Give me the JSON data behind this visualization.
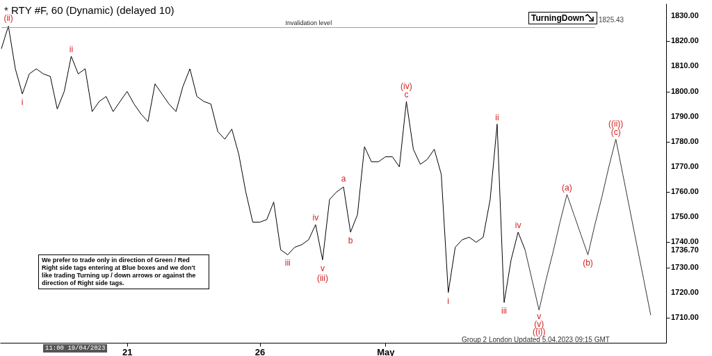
{
  "chart_data": {
    "type": "line",
    "title": "* RTY #F, 60 (Dynamic) (delayed 10)",
    "categories": [
      null,
      null,
      null,
      null,
      null,
      null,
      null,
      null,
      null,
      null,
      null,
      null,
      null,
      null,
      null,
      null,
      null,
      null,
      "21",
      null,
      null,
      null,
      null,
      null,
      null,
      null,
      null,
      null,
      null,
      null,
      null,
      null,
      null,
      null,
      null,
      null,
      null,
      "26",
      null,
      null,
      null,
      null,
      null,
      null,
      null,
      null,
      null,
      null,
      null,
      null,
      null,
      null,
      null,
      null,
      null,
      "May",
      null,
      null,
      null,
      null,
      null,
      null,
      null,
      null,
      null,
      null,
      null,
      null,
      null,
      null,
      null,
      null,
      null,
      null,
      null,
      null,
      null,
      null,
      null,
      null,
      null,
      null,
      null,
      null,
      null,
      null,
      null,
      null,
      null,
      null,
      null,
      null,
      null,
      null,
      null,
      null
    ],
    "ylim": [
      1700,
      1835
    ],
    "yticks": [
      {
        "value": 1710,
        "label": "1710.00"
      },
      {
        "value": 1720,
        "label": "1720.00"
      },
      {
        "value": 1730,
        "label": "1730.00"
      },
      {
        "value": 1736.7,
        "label": "1736.70"
      },
      {
        "value": 1740,
        "label": "1740.00"
      },
      {
        "value": 1750,
        "label": "1750.00"
      },
      {
        "value": 1760,
        "label": "1760.00"
      },
      {
        "value": 1770,
        "label": "1770.00"
      },
      {
        "value": 1780,
        "label": "1780.00"
      },
      {
        "value": 1790,
        "label": "1790.00"
      },
      {
        "value": 1800,
        "label": "1800.00"
      },
      {
        "value": 1810,
        "label": "1810.00"
      },
      {
        "value": 1820,
        "label": "1820.00"
      },
      {
        "value": 1830,
        "label": "1830.00"
      }
    ],
    "grid": false,
    "marker": "none",
    "line_style": "solid",
    "series": [
      {
        "color": "#000000",
        "values": [
          1817,
          1826,
          1809,
          1799,
          1807,
          1809,
          1807,
          1806,
          1793,
          1800,
          1814,
          1807,
          1809,
          1792,
          1796,
          1798,
          1792,
          1796,
          1800,
          1795,
          1791,
          1788,
          1803,
          1799,
          1795,
          1792,
          1802,
          1809,
          1798,
          1796,
          1795,
          1784,
          1781,
          1785,
          1775,
          1760,
          1748,
          1748,
          1749,
          1756,
          1737,
          1735,
          1738,
          1739,
          1741,
          1747,
          1733,
          1757,
          1760,
          1762,
          1744,
          1751,
          1778,
          1772,
          1772,
          1774,
          1774,
          1770,
          1796,
          1777,
          1771,
          1773,
          1777,
          1767,
          1720,
          1738,
          1741,
          1742,
          1740,
          1742,
          1757,
          1787,
          1716,
          1733,
          1744,
          1737,
          null,
          null,
          null,
          null,
          null,
          null,
          null,
          null,
          null,
          null,
          null,
          null,
          null,
          null,
          null,
          null,
          null,
          null,
          null,
          null
        ]
      },
      {
        "color": "#333333",
        "values": [
          null,
          null,
          null,
          null,
          null,
          null,
          null,
          null,
          null,
          null,
          null,
          null,
          null,
          null,
          null,
          null,
          null,
          null,
          null,
          null,
          null,
          null,
          null,
          null,
          null,
          null,
          null,
          null,
          null,
          null,
          null,
          null,
          null,
          null,
          null,
          null,
          null,
          null,
          null,
          null,
          null,
          null,
          null,
          null,
          null,
          null,
          null,
          null,
          null,
          null,
          null,
          null,
          null,
          null,
          null,
          null,
          null,
          null,
          null,
          null,
          null,
          null,
          null,
          null,
          null,
          null,
          null,
          null,
          null,
          null,
          null,
          null,
          null,
          null,
          null,
          1737,
          1725,
          1713,
          1725,
          1736,
          1748,
          1759,
          1751,
          1743,
          1735,
          1747,
          1758,
          1770,
          1781,
          1767,
          1753,
          1739,
          1725,
          1711,
          null,
          null
        ]
      }
    ],
    "ref_lines": [
      {
        "axis": "y",
        "value": 1825.43,
        "label": "Invalidation level",
        "color": "#e8788a"
      }
    ],
    "annotations": [
      {
        "text": "(ii)",
        "y": 1826
      },
      {
        "text": "i",
        "y": 1799
      },
      {
        "text": "ii",
        "y": 1814
      },
      {
        "text": "iii",
        "y": 1735
      },
      {
        "text": "iv",
        "y": 1747
      },
      {
        "text": "v",
        "y": 1733
      },
      {
        "text": "(iii)",
        "y": 1733
      },
      {
        "text": "a",
        "y": 1762
      },
      {
        "text": "b",
        "y": 1744
      },
      {
        "text": "(iv)",
        "y": 1796
      },
      {
        "text": "c",
        "y": 1796
      },
      {
        "text": "i",
        "y": 1720
      },
      {
        "text": "ii",
        "y": 1787
      },
      {
        "text": "iii",
        "y": 1716
      },
      {
        "text": "iv",
        "y": 1744
      },
      {
        "text": "v",
        "y": 1713
      },
      {
        "text": "(v)",
        "y": 1713
      },
      {
        "text": "((i))",
        "y": 1713
      },
      {
        "text": "(a)",
        "y": 1759
      },
      {
        "text": "(b)",
        "y": 1735
      },
      {
        "text": "((ii))",
        "y": 1781
      },
      {
        "text": "(c)",
        "y": 1781
      },
      "1825.43",
      "We prefer to trade only in direction of Green / Red Right side tags entering at Blue boxes and we don't like trading Turning up / down arrows or against the direction of Right side tags.",
      "TurningDown",
      "11:00 19/04/2023",
      "Group 2 London Updated 5.04.2023 09:15 GMT"
    ]
  }
}
